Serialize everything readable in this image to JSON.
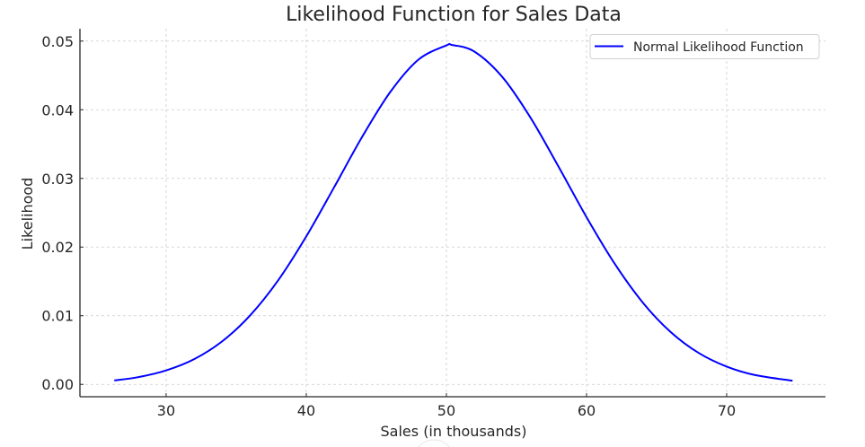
{
  "chart_data": {
    "type": "line",
    "title": "Likelihood Function for Sales Data",
    "xlabel": "Sales (in thousands)",
    "ylabel": "Likelihood",
    "xlim": [
      23.85,
      77.05
    ],
    "ylim": [
      -0.0018,
      0.0518
    ],
    "xticks": [
      30,
      40,
      50,
      60,
      70
    ],
    "xtick_labels": [
      "30",
      "40",
      "50",
      "60",
      "70"
    ],
    "yticks": [
      0,
      0.01,
      0.02,
      0.03,
      0.04,
      0.05
    ],
    "ytick_labels": [
      "0.00",
      "0.01",
      "0.02",
      "0.03",
      "0.04",
      "0.05"
    ],
    "grid": true,
    "legend_placement": "top-right",
    "series": [
      {
        "name": "Normal Likelihood Function",
        "color": "#0000ff",
        "x": [
          26.3,
          28,
          30,
          32,
          34,
          36,
          38,
          40,
          42,
          44,
          46,
          48,
          50,
          50.4,
          52,
          54,
          56,
          58,
          60,
          62,
          64,
          66,
          68,
          70,
          72,
          74.7
        ],
        "y": [
          0.00057,
          0.00105,
          0.00203,
          0.00367,
          0.00627,
          0.01006,
          0.01517,
          0.02155,
          0.02875,
          0.03609,
          0.0426,
          0.04729,
          0.04937,
          0.04943,
          0.04847,
          0.04475,
          0.03885,
          0.03172,
          0.02435,
          0.0176,
          0.01195,
          0.00763,
          0.00458,
          0.00259,
          0.00137,
          0.00053
        ]
      }
    ]
  }
}
